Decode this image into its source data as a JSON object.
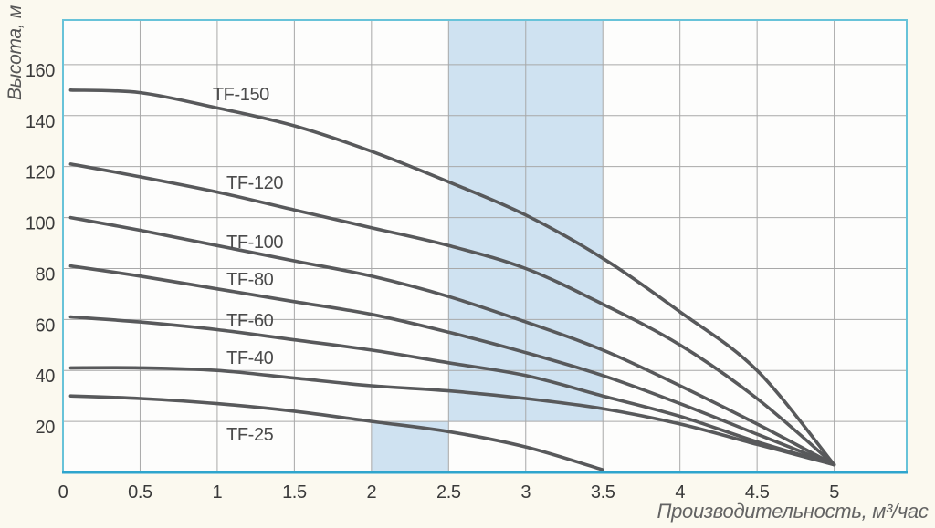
{
  "figure": {
    "background": "#fbf9ef",
    "plot_background": "#fdfdfc",
    "band_color": "#cfe2f1",
    "grid_color": "#a8a8a8",
    "border_color": "#68c3d9",
    "axis_line_color": "#2ea5cd",
    "curve_color": "#58595b",
    "tick_color": "#3a3a3a",
    "label_color": "#4b4b4b"
  },
  "chart_data": {
    "type": "line",
    "xlabel": "Производительность, м³/час",
    "ylabel": "Высота, м",
    "xlim": [
      0,
      5.47
    ],
    "ylim": [
      0,
      177.5
    ],
    "grid": true,
    "legend_position": "labels-on-curves",
    "x_ticks": [
      0,
      0.5,
      1,
      1.5,
      2,
      2.5,
      3,
      3.5,
      4,
      4.5,
      5
    ],
    "x_tick_labels": [
      "0",
      "0.5",
      "1",
      "1.5",
      "2",
      "2.5",
      "3",
      "3.5",
      "4",
      "4.5",
      "5"
    ],
    "y_ticks": [
      20,
      40,
      60,
      80,
      100,
      120,
      140,
      160
    ],
    "highlight_zones": [
      {
        "x0": 2.5,
        "x1": 3.5,
        "y0": 20,
        "y1": 177.5
      },
      {
        "x0": 2.0,
        "x1": 2.5,
        "y0": 0,
        "y1": 20
      }
    ],
    "series": [
      {
        "name": "TF-150",
        "label_x": 0.97,
        "label_y": 148.5,
        "points": [
          [
            0.05,
            150
          ],
          [
            0.5,
            149
          ],
          [
            1,
            143
          ],
          [
            1.5,
            136
          ],
          [
            2,
            126
          ],
          [
            2.5,
            114
          ],
          [
            3,
            101
          ],
          [
            3.5,
            84
          ],
          [
            4,
            63
          ],
          [
            4.5,
            40
          ],
          [
            5,
            3
          ]
        ]
      },
      {
        "name": "TF-120",
        "label_x": 1.06,
        "label_y": 113.8,
        "points": [
          [
            0.05,
            121
          ],
          [
            0.5,
            116
          ],
          [
            1,
            110
          ],
          [
            1.5,
            103
          ],
          [
            2,
            96
          ],
          [
            2.5,
            89
          ],
          [
            3,
            80
          ],
          [
            3.5,
            66
          ],
          [
            4,
            50
          ],
          [
            4.5,
            29
          ],
          [
            5,
            3
          ]
        ]
      },
      {
        "name": "TF-100",
        "label_x": 1.06,
        "label_y": 90.6,
        "points": [
          [
            0.05,
            100
          ],
          [
            0.5,
            95
          ],
          [
            1,
            89
          ],
          [
            1.5,
            83
          ],
          [
            2,
            77
          ],
          [
            2.5,
            69
          ],
          [
            3,
            59
          ],
          [
            3.5,
            48
          ],
          [
            4,
            34
          ],
          [
            4.5,
            19
          ],
          [
            5,
            3
          ]
        ]
      },
      {
        "name": "TF-80",
        "label_x": 1.06,
        "label_y": 75.9,
        "points": [
          [
            0.05,
            81
          ],
          [
            0.5,
            77
          ],
          [
            1,
            72
          ],
          [
            1.5,
            67
          ],
          [
            2,
            62
          ],
          [
            2.5,
            55
          ],
          [
            3,
            47
          ],
          [
            3.5,
            38
          ],
          [
            4,
            27
          ],
          [
            4.5,
            15
          ],
          [
            5,
            3
          ]
        ]
      },
      {
        "name": "TF-60",
        "label_x": 1.06,
        "label_y": 59.8,
        "points": [
          [
            0.05,
            61
          ],
          [
            0.5,
            59
          ],
          [
            1,
            56
          ],
          [
            1.5,
            52
          ],
          [
            2,
            48
          ],
          [
            2.5,
            43
          ],
          [
            3,
            38
          ],
          [
            3.5,
            30
          ],
          [
            4,
            22
          ],
          [
            4.5,
            12
          ],
          [
            5,
            3
          ]
        ]
      },
      {
        "name": "TF-40",
        "label_x": 1.06,
        "label_y": 45.1,
        "points": [
          [
            0.05,
            41
          ],
          [
            0.5,
            41
          ],
          [
            1,
            40
          ],
          [
            1.5,
            37
          ],
          [
            2,
            34
          ],
          [
            2.5,
            32
          ],
          [
            3,
            29
          ],
          [
            3.5,
            25
          ],
          [
            4,
            19
          ],
          [
            4.5,
            11
          ],
          [
            5,
            3
          ]
        ]
      },
      {
        "name": "TF-25",
        "label_x": 1.06,
        "label_y": 15.0,
        "points": [
          [
            0.05,
            30
          ],
          [
            0.5,
            29
          ],
          [
            1,
            27
          ],
          [
            1.5,
            24
          ],
          [
            2,
            20
          ],
          [
            2.5,
            16
          ],
          [
            3,
            10
          ],
          [
            3.5,
            1
          ]
        ]
      }
    ]
  }
}
